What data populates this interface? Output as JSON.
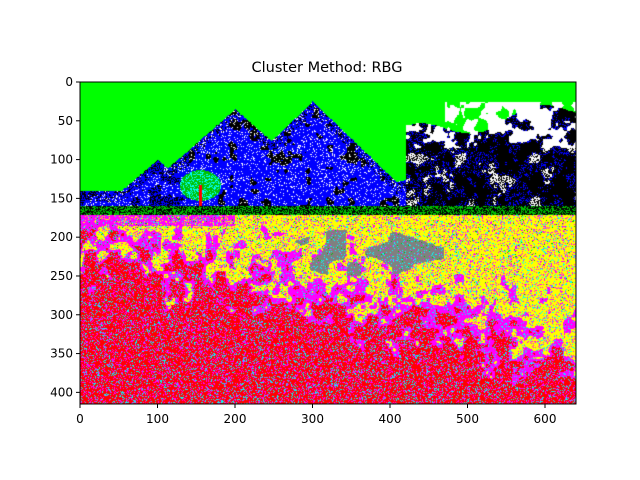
{
  "chart_data": {
    "type": "heatmap",
    "title": "Cluster Method: RBG",
    "xlabel": "",
    "ylabel": "",
    "xlim": [
      0,
      640
    ],
    "ylim": [
      415,
      0
    ],
    "x_ticks": [
      0,
      100,
      200,
      300,
      400,
      500,
      600
    ],
    "y_ticks": [
      0,
      50,
      100,
      150,
      200,
      250,
      300,
      350,
      400
    ],
    "grid": false,
    "legend": "none",
    "image_description": "Segmented landscape photo: sky, snowy mountains, tree, and a flowered meadow quantized into cluster colors",
    "cluster_colors": {
      "sky": "#00ff00",
      "mountain": "#0000ff",
      "shadow": "#000000",
      "snow_cloud": "#ffffff",
      "meadow_yellow": "#ffff00",
      "meadow_magenta": "#ff00ff",
      "meadow_red": "#ff0000",
      "meadow_cyan": "#00ffff",
      "path_gray": "#808080",
      "foliage_green": "#00c000"
    }
  }
}
